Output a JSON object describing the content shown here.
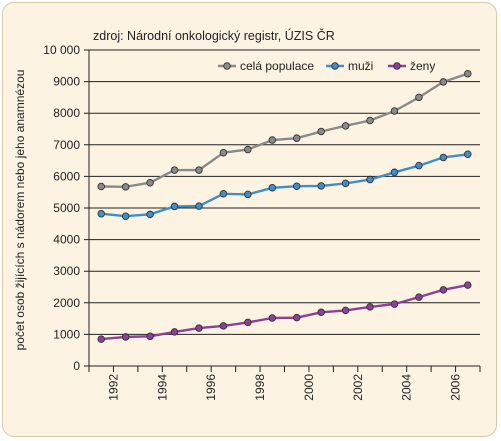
{
  "chart_data": {
    "type": "line",
    "source_note": "zdroj: Národní onkologický registr, ÚZIS ČR",
    "ylabel": "počet osob žijících s nádorem nebo jeho anamnézou",
    "xlabel": "",
    "ylim": [
      0,
      10000
    ],
    "y_ticks": [
      "0",
      "1000",
      "2000",
      "3000",
      "4000",
      "5000",
      "6000",
      "7000",
      "8000",
      "9000",
      "10 000"
    ],
    "x": [
      1991.5,
      1992.5,
      1993.5,
      1994.5,
      1995.5,
      1996.5,
      1997.5,
      1998.5,
      1999.5,
      2000.5,
      2001.5,
      2002.5,
      2003.5,
      2004.5,
      2005.5,
      2006.5
    ],
    "xlim": [
      1991,
      2007
    ],
    "x_ticks": [
      "1992",
      "1994",
      "1996",
      "1998",
      "2000",
      "2002",
      "2004",
      "2006"
    ],
    "grid": true,
    "legend_position": "top-right",
    "series": [
      {
        "name": "celá populace",
        "color": "#8a8a8a",
        "values": [
          5680,
          5670,
          5800,
          6200,
          6200,
          6750,
          6850,
          7150,
          7210,
          7420,
          7600,
          7770,
          8070,
          8500,
          8990,
          9250
        ]
      },
      {
        "name": "muži",
        "color": "#3f8ecb",
        "values": [
          4820,
          4740,
          4800,
          5050,
          5060,
          5450,
          5430,
          5640,
          5690,
          5700,
          5780,
          5900,
          6130,
          6340,
          6600,
          6700
        ]
      },
      {
        "name": "ženy",
        "color": "#8e3f96",
        "values": [
          850,
          920,
          940,
          1080,
          1200,
          1270,
          1380,
          1520,
          1530,
          1700,
          1760,
          1870,
          1960,
          2180,
          2410,
          2560
        ]
      }
    ]
  }
}
